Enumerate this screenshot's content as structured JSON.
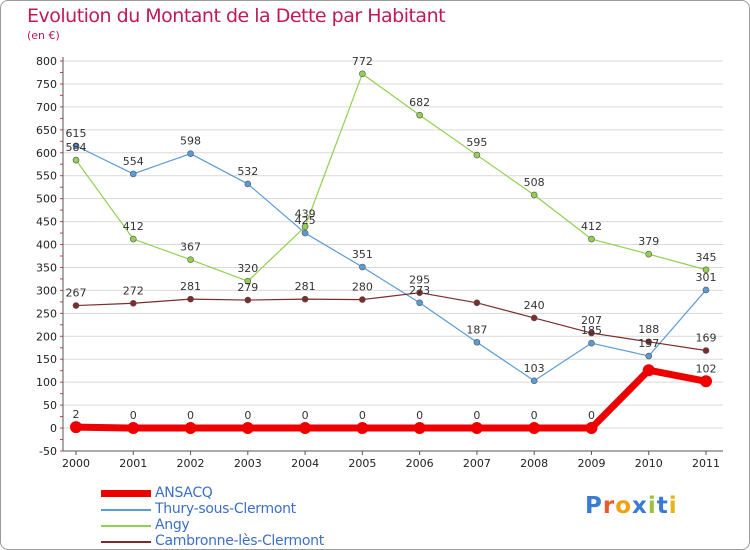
{
  "header": {
    "title": "Evolution du Montant de la Dette par Habitant",
    "unit": "(en €)"
  },
  "logo": {
    "text": "Proxiti",
    "letter_colors": [
      "#3a7bd5",
      "#e85a2c",
      "#f0a010",
      "#3a7bd5",
      "#9ac33a",
      "#3a7bd5",
      "#e8b410"
    ]
  },
  "chart_data": {
    "type": "line",
    "title": "Evolution du Montant de la Dette par Habitant",
    "ylabel": "(en €)",
    "xlabel": "",
    "x": [
      "2000",
      "2001",
      "2002",
      "2003",
      "2004",
      "2005",
      "2006",
      "2007",
      "2008",
      "2009",
      "2010",
      "2011"
    ],
    "ylim": [
      -50,
      800
    ],
    "yticks": [
      -50,
      0,
      50,
      100,
      150,
      200,
      250,
      300,
      350,
      400,
      450,
      500,
      550,
      600,
      650,
      700,
      750,
      800
    ],
    "grid": "horizontal",
    "legend_position": "bottom-left",
    "series": [
      {
        "name": "ANSACQ",
        "color": "#ee0000",
        "emphasis": true,
        "values": [
          2,
          0,
          0,
          0,
          0,
          0,
          0,
          0,
          0,
          0,
          126,
          102
        ],
        "labels": [
          "2",
          "0",
          "0",
          "0",
          "0",
          "0",
          "0",
          "0",
          "0",
          "0",
          "",
          "102"
        ]
      },
      {
        "name": "Thury-sous-Clermont",
        "color": "#5b9bd5",
        "values": [
          615,
          554,
          598,
          532,
          425,
          351,
          273,
          187,
          103,
          185,
          157,
          301
        ],
        "labels": [
          "615",
          "554",
          "598",
          "532",
          "425",
          "351",
          "273",
          "187",
          "103",
          "185",
          "157",
          "301"
        ]
      },
      {
        "name": "Angy",
        "color": "#92d050",
        "values": [
          584,
          412,
          367,
          320,
          439,
          772,
          682,
          595,
          508,
          412,
          379,
          345
        ],
        "labels": [
          "584",
          "412",
          "367",
          "320",
          "439",
          "772",
          "682",
          "595",
          "508",
          "412",
          "379",
          "345"
        ]
      },
      {
        "name": "Cambronne-lès-Clermont",
        "color": "#7b2c2c",
        "values": [
          267,
          272,
          281,
          279,
          281,
          280,
          295,
          273,
          240,
          207,
          188,
          169
        ],
        "labels": [
          "267",
          "272",
          "281",
          "279",
          "281",
          "280",
          "295",
          "",
          "240",
          "207",
          "188",
          "169"
        ]
      }
    ]
  }
}
